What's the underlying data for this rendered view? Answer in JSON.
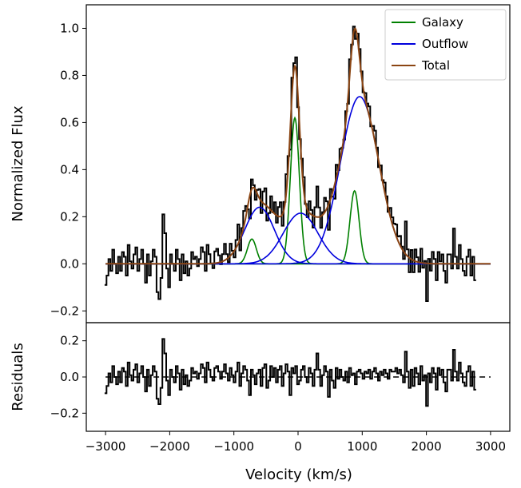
{
  "chart_data": [
    {
      "type": "line",
      "panel": "fit",
      "xlabel": "",
      "ylabel": "Normalized Flux",
      "xlim": [
        -3300,
        3300
      ],
      "ylim": [
        -0.25,
        1.1
      ],
      "yticks": [
        "−0.2",
        "0.0",
        "0.2",
        "0.4",
        "0.6",
        "0.8",
        "1.0"
      ],
      "yticks_values": [
        -0.2,
        0.0,
        0.2,
        0.4,
        0.6,
        0.8,
        1.0
      ],
      "legend_position": "top-right",
      "series": [
        {
          "name": "Galaxy",
          "color": "#008000",
          "components": [
            {
              "amplitude": 0.105,
              "center": -720,
              "sigma": 70
            },
            {
              "amplitude": 0.62,
              "center": -50,
              "sigma": 70
            },
            {
              "amplitude": 0.31,
              "center": 880,
              "sigma": 70
            }
          ]
        },
        {
          "name": "Outflow",
          "color": "#0000dd",
          "components": [
            {
              "amplitude": 0.24,
              "center": -600,
              "sigma": 230
            },
            {
              "amplitude": 0.215,
              "center": 40,
              "sigma": 270
            },
            {
              "amplitude": 0.71,
              "center": 960,
              "sigma": 300
            }
          ]
        },
        {
          "name": "Total",
          "color": "#8b4513",
          "description": "sum of Galaxy and Outflow components"
        }
      ],
      "data_series": {
        "style": "steps",
        "color": "#000000",
        "x_start": -3000,
        "x_step": 30,
        "residuals": [
          -0.09,
          -0.05,
          0.02,
          -0.03,
          0.06,
          0.0,
          -0.04,
          0.03,
          -0.03,
          0.05,
          0.03,
          -0.05,
          0.08,
          0.01,
          -0.02,
          0.04,
          0.07,
          -0.03,
          0.02,
          0.06,
          0.0,
          -0.08,
          0.04,
          -0.05,
          0.01,
          0.06,
          0.03,
          -0.12,
          -0.15,
          -0.06,
          0.21,
          0.13,
          -0.02,
          -0.1,
          0.04,
          0.0,
          -0.03,
          0.06,
          0.02,
          -0.07,
          0.04,
          -0.04,
          0.01,
          -0.05,
          -0.02,
          0.05,
          0.02,
          0.03,
          -0.01,
          0.02,
          0.07,
          0.05,
          -0.03,
          0.08,
          0.04,
          0.0,
          -0.02,
          0.05,
          0.06,
          0.03,
          -0.01,
          0.03,
          0.07,
          0.02,
          -0.02,
          0.05,
          0.01,
          -0.03,
          0.03,
          0.08,
          -0.05,
          0.02,
          0.06,
          0.04,
          -0.02,
          -0.1,
          0.04,
          0.01,
          -0.04,
          0.02,
          0.04,
          -0.05,
          0.05,
          0.07,
          -0.06,
          -0.02,
          0.06,
          0.0,
          0.05,
          -0.03,
          0.04,
          0.06,
          -0.05,
          0.02,
          0.07,
          0.03,
          -0.1,
          0.05,
          0.02,
          0.06,
          -0.04,
          -0.02,
          0.04,
          0.06,
          0.0,
          -0.03,
          0.05,
          0.02,
          -0.05,
          0.04,
          0.13,
          0.04,
          -0.05,
          0.01,
          0.06,
          0.03,
          -0.11,
          0.04,
          -0.02,
          -0.06,
          0.05,
          -0.01,
          0.04,
          0.0,
          -0.02,
          0.03,
          -0.03,
          0.05,
          0.01,
          0.02,
          -0.04,
          0.03,
          0.04,
          0.02,
          -0.01,
          0.03,
          0.02,
          0.04,
          -0.01,
          0.03,
          0.05,
          0.02,
          -0.02,
          0.03,
          0.01,
          0.04,
          0.02,
          -0.01,
          0.04,
          0.03,
          0.03,
          0.05,
          0.02,
          0.04,
          0.01,
          -0.03,
          0.14,
          0.03,
          -0.06,
          0.04,
          -0.05,
          0.05,
          0.02,
          -0.04,
          0.06,
          -0.02,
          0.01,
          -0.16,
          0.02,
          -0.03,
          0.05,
          0.02,
          -0.07,
          0.05,
          0.01,
          0.04,
          -0.03,
          -0.08,
          0.04,
          0.04,
          -0.02,
          0.15,
          0.03,
          -0.02,
          0.08,
          0.02,
          -0.03,
          -0.05,
          0.03,
          0.06,
          -0.05,
          0.03,
          -0.07
        ]
      }
    },
    {
      "type": "line",
      "panel": "residuals",
      "xlabel": "Velocity (km/s)",
      "ylabel": "Residuals",
      "xlim": [
        -3300,
        3300
      ],
      "ylim": [
        -0.3,
        0.3
      ],
      "xticks": [
        "−3000",
        "−2000",
        "−1000",
        "0",
        "1000",
        "2000",
        "3000"
      ],
      "xticks_values": [
        -3000,
        -2000,
        -1000,
        0,
        1000,
        2000,
        3000
      ],
      "yticks": [
        "−0.2",
        "0.0",
        "0.2"
      ],
      "yticks_values": [
        -0.2,
        0.0,
        0.2
      ],
      "reference_line": {
        "y": 0,
        "style": "dashed",
        "color": "#000000"
      }
    }
  ]
}
